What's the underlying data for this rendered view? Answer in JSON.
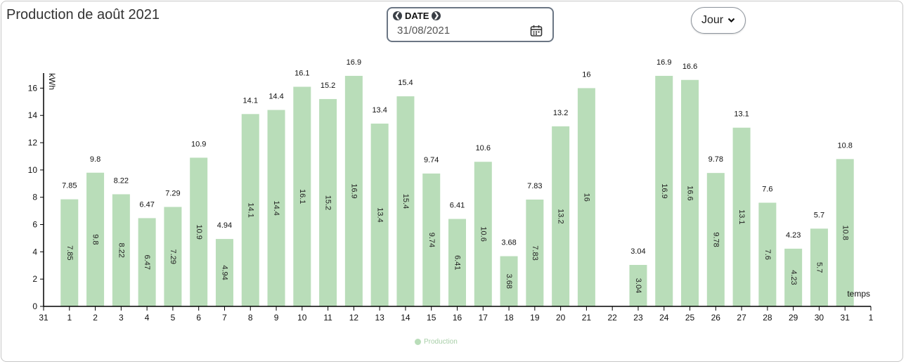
{
  "header": {
    "title": "Production de août 2021"
  },
  "date_picker": {
    "label": "DATE",
    "value": "31/08/2021"
  },
  "period_select": {
    "value": "Jour"
  },
  "chart_data": {
    "type": "bar",
    "x_ticks": [
      "31",
      "1",
      "2",
      "3",
      "4",
      "5",
      "6",
      "7",
      "8",
      "9",
      "10",
      "11",
      "12",
      "13",
      "14",
      "15",
      "16",
      "17",
      "18",
      "19",
      "20",
      "21",
      "22",
      "23",
      "24",
      "25",
      "26",
      "27",
      "28",
      "29",
      "30",
      "31",
      "1"
    ],
    "categories": [
      "1",
      "2",
      "3",
      "4",
      "5",
      "6",
      "7",
      "8",
      "9",
      "10",
      "11",
      "12",
      "13",
      "14",
      "15",
      "16",
      "17",
      "18",
      "19",
      "20",
      "21",
      "22",
      "23",
      "24",
      "25",
      "26",
      "27",
      "28",
      "29",
      "30",
      "31"
    ],
    "series": [
      {
        "name": "Production",
        "values": [
          7.85,
          9.8,
          8.22,
          6.47,
          7.29,
          10.9,
          4.94,
          14.1,
          14.4,
          16.1,
          15.2,
          16.9,
          13.4,
          15.4,
          9.74,
          6.41,
          10.6,
          3.68,
          7.83,
          13.2,
          16,
          null,
          3.04,
          16.9,
          16.6,
          9.78,
          13.1,
          7.6,
          4.23,
          5.7,
          10.8
        ],
        "color": "#b9ddb9"
      }
    ],
    "ylabel": "kWh",
    "xlabel": "temps",
    "ylim": [
      0,
      17
    ],
    "y_ticks": [
      "0",
      "2",
      "4",
      "6",
      "8",
      "10",
      "12",
      "14",
      "16"
    ],
    "legend_position": "bottom-center"
  }
}
